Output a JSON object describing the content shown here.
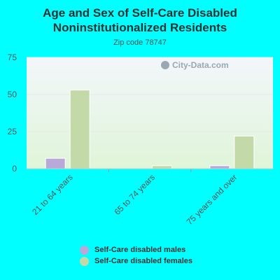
{
  "header": {
    "title_line1": "Age and Sex of Self-Care Disabled",
    "title_line2": "Noninstitutionalized Residents",
    "subtitle": "Zip code 78747"
  },
  "watermark": {
    "text": "City-Data.com",
    "icon": "search-icon"
  },
  "colors": {
    "page_bg": "#00FFFF",
    "males": "#b8a9d9",
    "females": "#c4d9a8",
    "plot_top": "#f3f6fb",
    "plot_bottom": "#dff5d8"
  },
  "chart_data": {
    "type": "bar",
    "title": "Age and Sex of Self-Care Disabled Noninstitutionalized Residents",
    "subtitle": "Zip code 78747",
    "categories": [
      "21 to 64 years",
      "65 to 74 years",
      "75 years and over"
    ],
    "series": [
      {
        "name": "Self-Care disabled males",
        "values": [
          7,
          0,
          2
        ]
      },
      {
        "name": "Self-Care disabled females",
        "values": [
          53,
          2,
          22
        ]
      }
    ],
    "ylim": [
      0,
      75
    ],
    "yticks": [
      "0",
      "25",
      "50",
      "75"
    ],
    "legend_position": "bottom",
    "grid": true
  }
}
